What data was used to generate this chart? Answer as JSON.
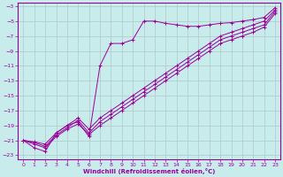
{
  "xlabel": "Windchill (Refroidissement éolien,°C)",
  "bg_color": "#c8ecec",
  "line_color": "#990099",
  "grid_color": "#b0c8c8",
  "xlim": [
    -0.5,
    23.5
  ],
  "ylim": [
    -23.5,
    -2.5
  ],
  "xticks": [
    0,
    1,
    2,
    3,
    4,
    5,
    6,
    7,
    8,
    9,
    10,
    11,
    12,
    13,
    14,
    15,
    16,
    17,
    18,
    19,
    20,
    21,
    22,
    23
  ],
  "yticks": [
    -3,
    -5,
    -7,
    -9,
    -11,
    -13,
    -15,
    -17,
    -19,
    -21,
    -23
  ],
  "series": [
    {
      "x": [
        0,
        1,
        2,
        3,
        4,
        5,
        6,
        7,
        8,
        9,
        10,
        11,
        12,
        13,
        14,
        15,
        16,
        17,
        18,
        19,
        20,
        21,
        22,
        23
      ],
      "y": [
        -21,
        -22,
        -22.5,
        -20,
        -19,
        -18.5,
        -20.5,
        -11,
        -8,
        -8,
        -7.5,
        -5,
        -5,
        -5.3,
        -5.5,
        -5.7,
        -5.7,
        -5.5,
        -5.3,
        -5.2,
        -5,
        -4.8,
        -4.5,
        -3.2
      ]
    },
    {
      "x": [
        0,
        1,
        2,
        3,
        4,
        5,
        6,
        7,
        8,
        9,
        10,
        11,
        12,
        13,
        14,
        15,
        16,
        17,
        18,
        19,
        20,
        21,
        22,
        23
      ],
      "y": [
        -21,
        -21.2,
        -21.5,
        -20,
        -19,
        -18,
        -19.5,
        -18,
        -17,
        -16,
        -15,
        -14,
        -13,
        -12,
        -11,
        -10,
        -9,
        -8,
        -7,
        -6.5,
        -6,
        -5.5,
        -5,
        -3.5
      ]
    },
    {
      "x": [
        0,
        1,
        2,
        3,
        4,
        5,
        6,
        7,
        8,
        9,
        10,
        11,
        12,
        13,
        14,
        15,
        16,
        17,
        18,
        19,
        20,
        21,
        22,
        23
      ],
      "y": [
        -21,
        -21.3,
        -21.8,
        -20.3,
        -19.3,
        -18.3,
        -20,
        -18.5,
        -17.5,
        -16.5,
        -15.5,
        -14.5,
        -13.5,
        -12.5,
        -11.5,
        -10.5,
        -9.5,
        -8.5,
        -7.5,
        -7,
        -6.5,
        -6,
        -5.5,
        -3.7
      ]
    },
    {
      "x": [
        0,
        1,
        2,
        3,
        4,
        5,
        6,
        7,
        8,
        9,
        10,
        11,
        12,
        13,
        14,
        15,
        16,
        17,
        18,
        19,
        20,
        21,
        22,
        23
      ],
      "y": [
        -21,
        -21.5,
        -22,
        -20.5,
        -19.5,
        -18.8,
        -20.2,
        -19,
        -18,
        -17,
        -16,
        -15,
        -14,
        -13,
        -12,
        -11,
        -10,
        -9,
        -8,
        -7.5,
        -7,
        -6.5,
        -5.8,
        -4
      ]
    }
  ]
}
